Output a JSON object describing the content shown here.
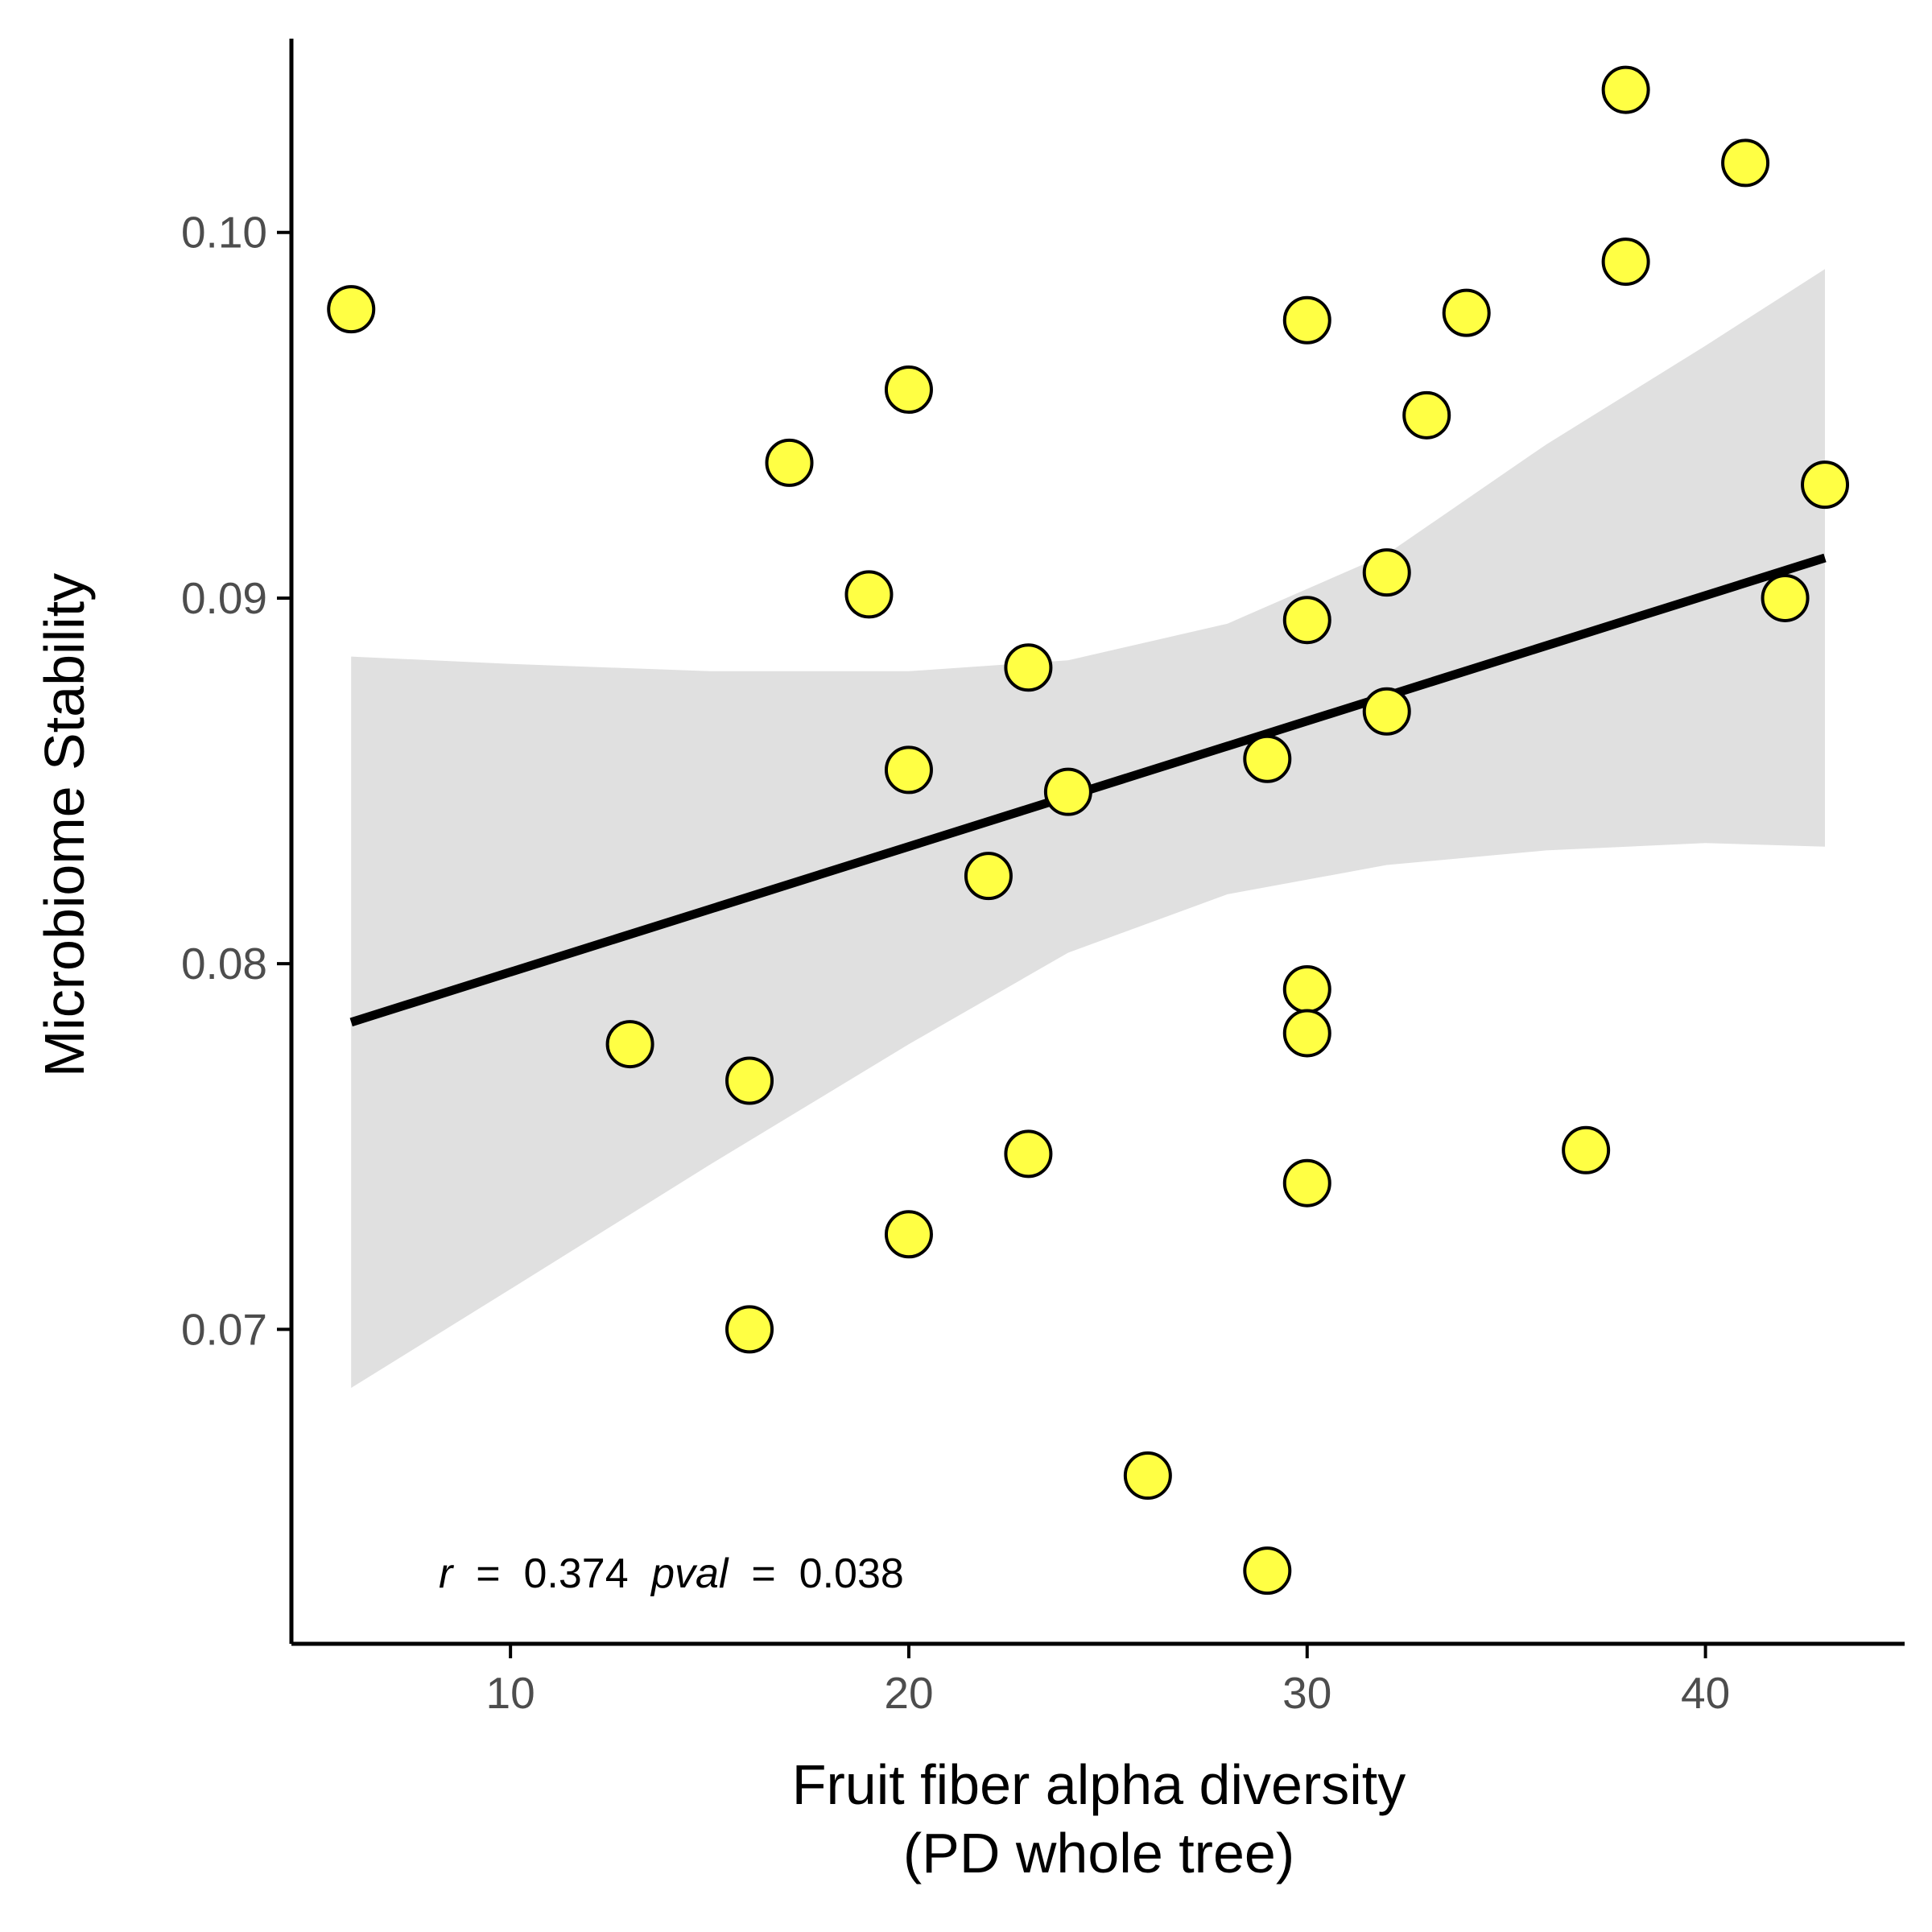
{
  "chart_data": {
    "type": "scatter",
    "title": "",
    "xlabel": [
      "Fruit fiber alpha diversity",
      "(PD whole tree)"
    ],
    "ylabel": "Microbiome Stability",
    "xlim": [
      4.5,
      45
    ],
    "ylim": [
      0.0614,
      0.1053
    ],
    "x_ticks": [
      10,
      20,
      30,
      40
    ],
    "x_tick_labels": [
      "10",
      "20",
      "30",
      "40"
    ],
    "y_ticks": [
      0.07,
      0.08,
      0.09,
      0.1
    ],
    "y_tick_labels": [
      "0.07",
      "0.08",
      "0.09",
      "0.10"
    ],
    "grid": false,
    "legend": "none",
    "points": [
      {
        "x": 6,
        "y": 0.0979
      },
      {
        "x": 13,
        "y": 0.0778
      },
      {
        "x": 16,
        "y": 0.0768
      },
      {
        "x": 16,
        "y": 0.07
      },
      {
        "x": 17,
        "y": 0.0937
      },
      {
        "x": 19,
        "y": 0.0901
      },
      {
        "x": 20,
        "y": 0.0957
      },
      {
        "x": 20,
        "y": 0.0853
      },
      {
        "x": 20,
        "y": 0.0726
      },
      {
        "x": 22,
        "y": 0.0824
      },
      {
        "x": 23,
        "y": 0.0881
      },
      {
        "x": 23,
        "y": 0.0748
      },
      {
        "x": 24,
        "y": 0.0847
      },
      {
        "x": 26,
        "y": 0.066
      },
      {
        "x": 29,
        "y": 0.0856
      },
      {
        "x": 29,
        "y": 0.0634
      },
      {
        "x": 30,
        "y": 0.0976
      },
      {
        "x": 30,
        "y": 0.0894
      },
      {
        "x": 30,
        "y": 0.0793
      },
      {
        "x": 30,
        "y": 0.0781
      },
      {
        "x": 30,
        "y": 0.074
      },
      {
        "x": 32,
        "y": 0.0907
      },
      {
        "x": 32,
        "y": 0.0869
      },
      {
        "x": 33,
        "y": 0.095
      },
      {
        "x": 34,
        "y": 0.0978
      },
      {
        "x": 37,
        "y": 0.0749
      },
      {
        "x": 38,
        "y": 0.1039
      },
      {
        "x": 38,
        "y": 0.0992
      },
      {
        "x": 41,
        "y": 0.1019
      },
      {
        "x": 42,
        "y": 0.09
      },
      {
        "x": 43,
        "y": 0.0931
      }
    ],
    "fit_line": {
      "x": [
        6,
        43
      ],
      "y": [
        0.0784,
        0.0911
      ]
    },
    "confidence_band": {
      "x": [
        6,
        10,
        15,
        20,
        24,
        28,
        32,
        36,
        40,
        43
      ],
      "lower": [
        0.0684,
        0.0711,
        0.0745,
        0.0778,
        0.0803,
        0.0819,
        0.0827,
        0.0831,
        0.0833,
        0.0832
      ],
      "upper": [
        0.0884,
        0.0882,
        0.088,
        0.088,
        0.0883,
        0.0893,
        0.0912,
        0.0942,
        0.0969,
        0.099
      ]
    },
    "colors": {
      "point_fill": "#FFFF44",
      "point_stroke": "#000000",
      "band": "#E0E0E0",
      "line": "#000000"
    },
    "annotation": {
      "r_symbol": "r",
      "r_eq": " = ",
      "r_value": "0.374",
      "p_symbol": "pval",
      "p_eq": " = ",
      "p_value": "0.038"
    }
  }
}
